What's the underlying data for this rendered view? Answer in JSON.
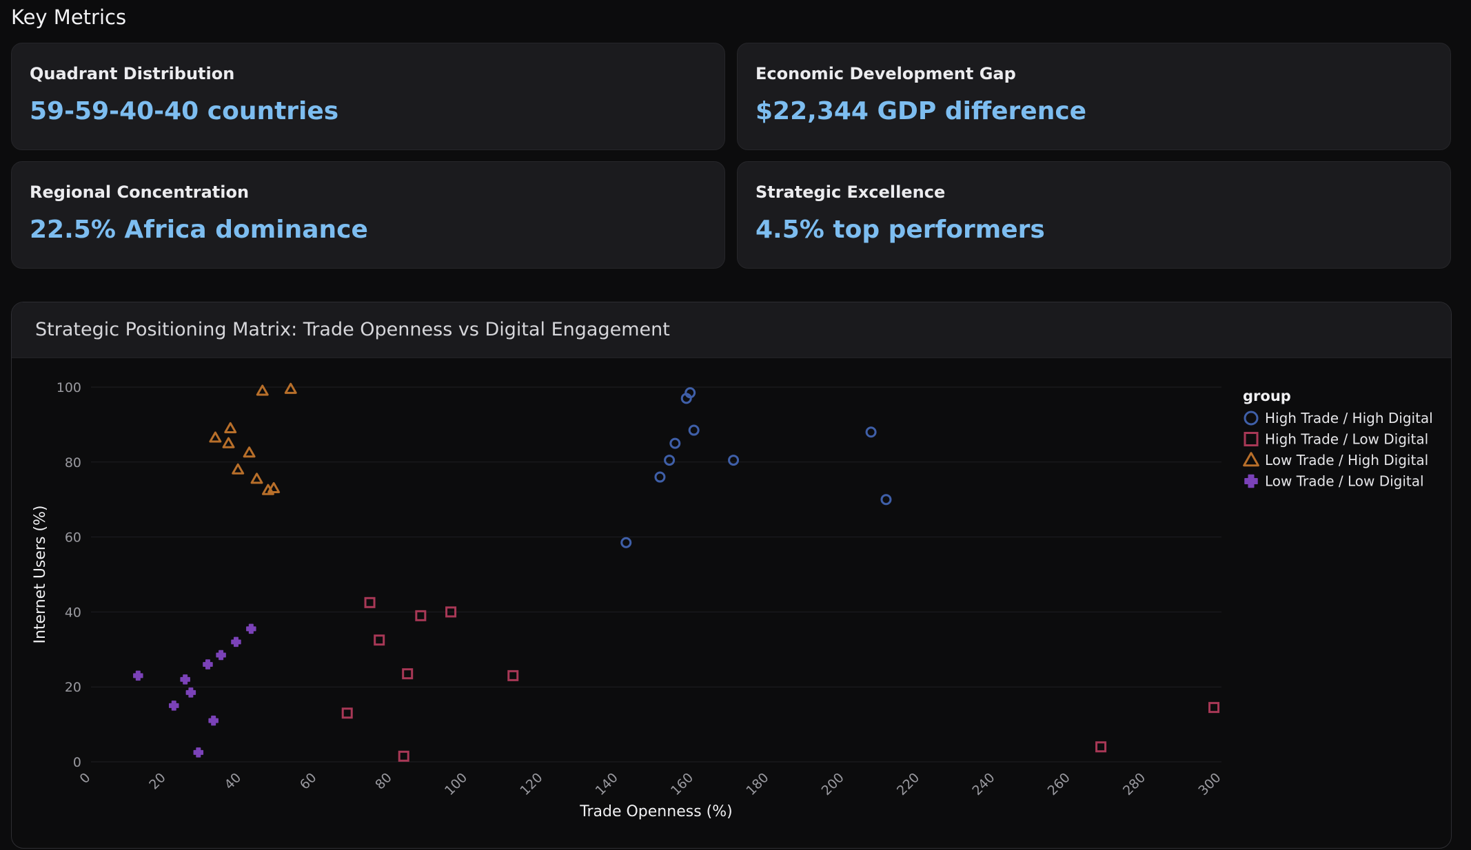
{
  "section_title": "Key Metrics",
  "metrics": [
    {
      "label": "Quadrant Distribution",
      "value": "59-59-40-40 countries"
    },
    {
      "label": "Economic Development Gap",
      "value": "$22,344 GDP difference"
    },
    {
      "label": "Regional Concentration",
      "value": "22.5% Africa dominance"
    },
    {
      "label": "Strategic Excellence",
      "value": "4.5% top performers"
    }
  ],
  "chart_title": "Strategic Positioning Matrix: Trade Openness vs Digital Engagement",
  "colors": {
    "accent": "#7dbdf0",
    "high_high": "#3f5fa8",
    "high_low": "#a83856",
    "low_high": "#b86f2a",
    "low_low": "#7b42b8"
  },
  "chart_data": {
    "type": "scatter",
    "title": "Strategic Positioning Matrix: Trade Openness vs Digital Engagement",
    "xlabel": "Trade Openness (%)",
    "ylabel": "Internet Users (%)",
    "xlim": [
      0,
      300
    ],
    "ylim": [
      0,
      100
    ],
    "xticks": [
      0,
      20,
      40,
      60,
      80,
      100,
      120,
      140,
      160,
      180,
      200,
      220,
      240,
      260,
      280,
      300
    ],
    "yticks": [
      0,
      20,
      40,
      60,
      80,
      100
    ],
    "grid": true,
    "legend_title": "group",
    "legend_position": "right",
    "series": [
      {
        "name": "High Trade / High Digital",
        "marker": "circle",
        "color": "#3f5fa8",
        "points": [
          [
            158,
            97
          ],
          [
            159,
            98.5
          ],
          [
            155,
            85
          ],
          [
            160,
            88.5
          ],
          [
            153.5,
            80.5
          ],
          [
            170.5,
            80.5
          ],
          [
            151,
            76
          ],
          [
            142,
            58.5
          ],
          [
            207,
            88
          ],
          [
            211,
            70
          ]
        ]
      },
      {
        "name": "High Trade / Low Digital",
        "marker": "square",
        "color": "#a83856",
        "points": [
          [
            74,
            42.5
          ],
          [
            76.5,
            32.5
          ],
          [
            87.5,
            39
          ],
          [
            95.5,
            40
          ],
          [
            84,
            23.5
          ],
          [
            112,
            23
          ],
          [
            68,
            13
          ],
          [
            83,
            1.5
          ],
          [
            268,
            4
          ],
          [
            298,
            14.5
          ]
        ]
      },
      {
        "name": "Low Trade / High Digital",
        "marker": "triangle",
        "color": "#b86f2a",
        "points": [
          [
            45.5,
            99
          ],
          [
            53,
            99.5
          ],
          [
            33,
            86.5
          ],
          [
            37,
            89
          ],
          [
            36.5,
            85
          ],
          [
            42,
            82.5
          ],
          [
            39,
            78
          ],
          [
            44,
            75.5
          ],
          [
            47,
            72.5
          ],
          [
            48.5,
            73
          ]
        ]
      },
      {
        "name": "Low Trade / Low Digital",
        "marker": "cross",
        "color": "#7b42b8",
        "points": [
          [
            12.5,
            23
          ],
          [
            25,
            22
          ],
          [
            22,
            15
          ],
          [
            26.5,
            18.5
          ],
          [
            31,
            26
          ],
          [
            34.5,
            28.5
          ],
          [
            38.5,
            32
          ],
          [
            42.5,
            35.5
          ],
          [
            32.5,
            11
          ],
          [
            28.5,
            2.5
          ]
        ]
      }
    ]
  }
}
